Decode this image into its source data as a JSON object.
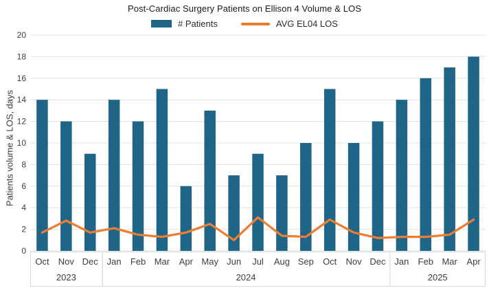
{
  "chart": {
    "title": "Post-Cardiac Surgery Patients on Ellison 4 Volume & LOS",
    "y_axis_title": "Patients volume & LOS, days",
    "legend": {
      "patients_label": "# Patients",
      "los_label": "AVG EL04 LOS"
    }
  },
  "chart_data": {
    "type": "bar+line combo",
    "categories": [
      "Oct",
      "Nov",
      "Dec",
      "Jan",
      "Feb",
      "Mar",
      "Apr",
      "May",
      "Jun",
      "Jul",
      "Aug",
      "Sep",
      "Oct",
      "Nov",
      "Dec",
      "Jan",
      "Feb",
      "Mar",
      "Apr"
    ],
    "year_groups": [
      {
        "label": "2023",
        "count": 3
      },
      {
        "label": "2024",
        "count": 12
      },
      {
        "label": "2025",
        "count": 4
      }
    ],
    "series": [
      {
        "name": "# Patients",
        "type": "bar",
        "color": "#1F6587",
        "values": [
          14,
          12,
          9,
          14,
          12,
          15,
          6,
          13,
          7,
          9,
          7,
          10,
          15,
          10,
          12,
          14,
          16,
          17,
          18
        ]
      },
      {
        "name": "AVG EL04 LOS",
        "type": "line",
        "color": "#ED7D31",
        "values": [
          1.7,
          2.8,
          1.7,
          2.1,
          1.5,
          1.3,
          1.7,
          2.5,
          1.0,
          3.1,
          1.4,
          1.3,
          2.9,
          1.7,
          1.2,
          1.3,
          1.3,
          1.5,
          2.9
        ]
      }
    ],
    "title": "Post-Cardiac Surgery Patients on Ellison 4 Volume & LOS",
    "ylabel": "Patients volume & LOS, days",
    "xlabel": "",
    "ylim": [
      0,
      20
    ],
    "y_tick_step": 2,
    "y_tick_labels": [
      "0",
      "2",
      "4",
      "6",
      "8",
      "10",
      "12",
      "14",
      "16",
      "18",
      "20"
    ],
    "grid": true,
    "legend_position": "top",
    "colors": {
      "bar": "#1F6587",
      "line": "#ED7D31",
      "gridline": "#E0E0E0",
      "axis_border": "#D9D9D9",
      "tick_text": "#3d3d3d",
      "title_text": "#1a1a1a"
    }
  }
}
